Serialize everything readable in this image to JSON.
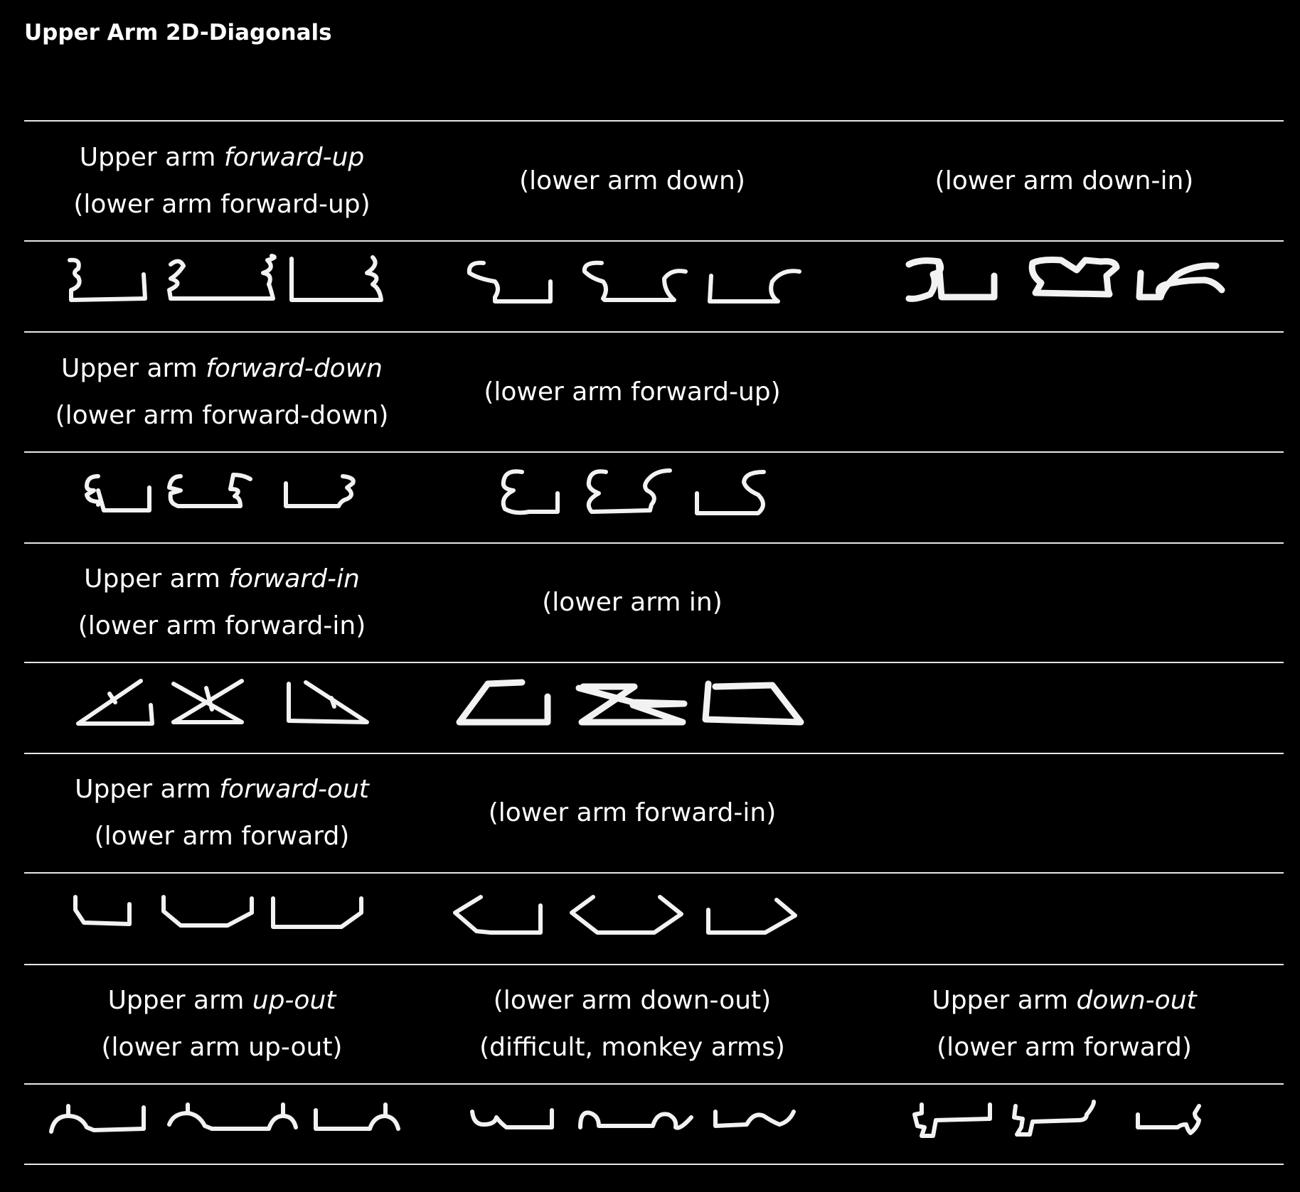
{
  "title": "Upper Arm 2D-Diagonals",
  "sections": [
    {
      "cells": [
        {
          "line1_pre": "Upper arm ",
          "line1_em": "forward-up",
          "line2": "(lower arm forward-up)"
        },
        {
          "line1_pre": "",
          "line1_em": "",
          "line2": "(lower arm down)"
        },
        {
          "line1_pre": "",
          "line1_em": "",
          "line2": "(lower arm down-in)"
        }
      ]
    },
    {
      "cells": [
        {
          "line1_pre": "Upper arm ",
          "line1_em": "forward-down",
          "line2": "(lower arm forward-down)"
        },
        {
          "line1_pre": "",
          "line1_em": "",
          "line2": "(lower arm forward-up)"
        }
      ]
    },
    {
      "cells": [
        {
          "line1_pre": "Upper arm ",
          "line1_em": "forward-in",
          "line2": "(lower arm forward-in)"
        },
        {
          "line1_pre": "",
          "line1_em": "",
          "line2": "(lower arm in)"
        }
      ]
    },
    {
      "cells": [
        {
          "line1_pre": "Upper arm ",
          "line1_em": "forward-out",
          "line2": "(lower arm forward)"
        },
        {
          "line1_pre": "",
          "line1_em": "",
          "line2": "(lower arm forward-in)"
        }
      ]
    },
    {
      "cells": [
        {
          "line1_pre": "Upper arm ",
          "line1_em": "up-out",
          "line2": "(lower arm up-out)"
        },
        {
          "line1_pre": "(lower arm down-out)",
          "line1_em": "",
          "line2": "(difficult, monkey arms)"
        },
        {
          "line1_pre": "Upper arm ",
          "line1_em": "down-out",
          "line2": "(lower arm forward)"
        }
      ]
    }
  ],
  "glyph_icons": [
    "arm-glyph-forward-up-lower-forward-up",
    "arm-glyph-forward-up-lower-down",
    "arm-glyph-forward-up-lower-down-in",
    "arm-glyph-forward-down-lower-forward-down",
    "arm-glyph-forward-down-lower-forward-up",
    "arm-glyph-forward-in-lower-forward-in",
    "arm-glyph-forward-in-lower-in",
    "arm-glyph-forward-out-lower-forward",
    "arm-glyph-forward-out-lower-forward-in",
    "arm-glyph-up-out-lower-up-out",
    "arm-glyph-up-out-lower-down-out",
    "arm-glyph-down-out-lower-forward"
  ]
}
